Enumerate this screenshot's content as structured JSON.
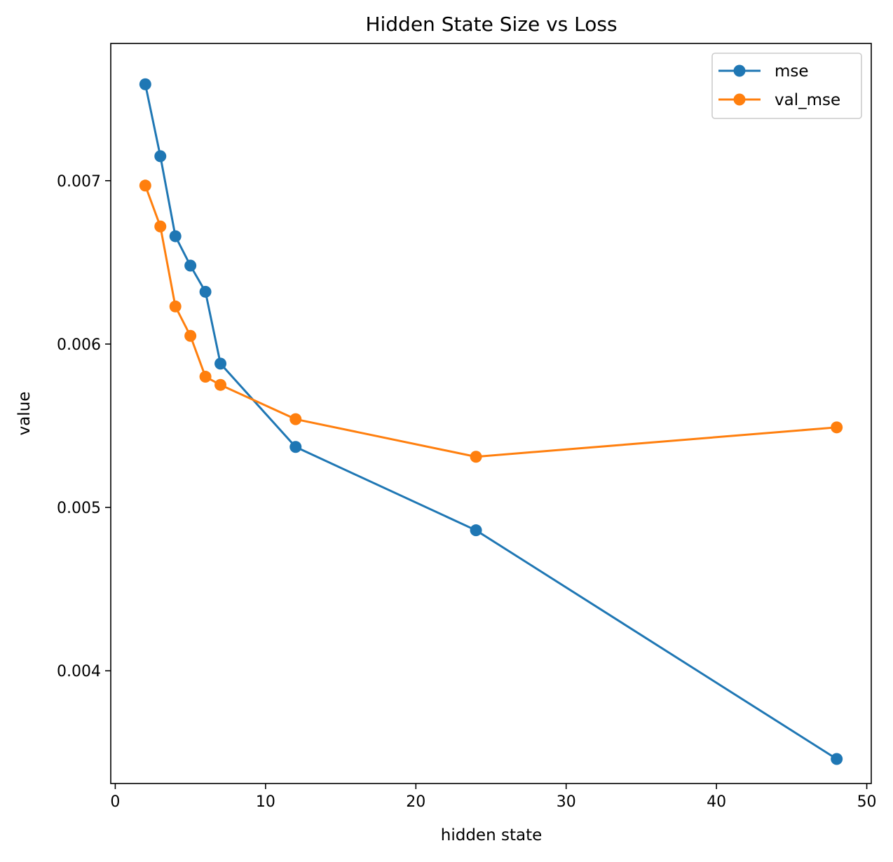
{
  "chart_data": {
    "type": "line",
    "title": "Hidden State Size vs Loss",
    "xlabel": "hidden state",
    "ylabel": "value",
    "xlim": [
      -0.3,
      50.3
    ],
    "ylim": [
      0.00331,
      0.00784
    ],
    "xticks": [
      0,
      10,
      20,
      30,
      40,
      50
    ],
    "xtick_labels": [
      "0",
      "10",
      "20",
      "30",
      "40",
      "50"
    ],
    "yticks": [
      0.004,
      0.005,
      0.006,
      0.007
    ],
    "ytick_labels": [
      "0.004",
      "0.005",
      "0.006",
      "0.007"
    ],
    "grid": false,
    "legend_position": "top-right",
    "x": [
      2,
      3,
      4,
      5,
      6,
      7,
      12,
      24,
      48
    ],
    "series": [
      {
        "name": "mse",
        "color": "#1f77b4",
        "marker": "circle",
        "values": [
          0.00759,
          0.00715,
          0.00666,
          0.00648,
          0.00632,
          0.00588,
          0.00537,
          0.00486,
          0.00346
        ]
      },
      {
        "name": "val_mse",
        "color": "#ff7f0e",
        "marker": "circle",
        "values": [
          0.00697,
          0.00672,
          0.00623,
          0.00605,
          0.0058,
          0.00575,
          0.00554,
          0.00531,
          0.00549
        ]
      }
    ]
  }
}
